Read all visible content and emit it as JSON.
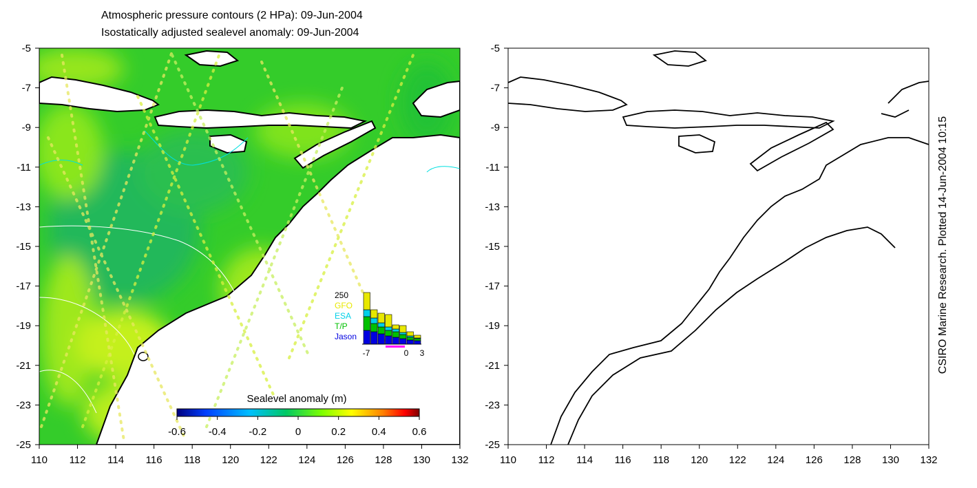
{
  "titles": {
    "line1": "Atmospheric pressure contours (2 HPa): 09-Jun-2004",
    "line2": "Isostatically adjusted sealevel anomaly: 09-Jun-2004"
  },
  "credit": "CSIRO Marine Research. Plotted 14-Jun-2004 10:15",
  "axes": {
    "x_ticks": [
      "110",
      "112",
      "114",
      "116",
      "118",
      "120",
      "122",
      "124",
      "126",
      "128",
      "130",
      "132"
    ],
    "y_ticks": [
      "-5",
      "-7",
      "-9",
      "-11",
      "-13",
      "-15",
      "-17",
      "-19",
      "-21",
      "-23",
      "-25"
    ],
    "lon_range": [
      110,
      132
    ],
    "lat_range": [
      -25,
      -5
    ]
  },
  "colorbar": {
    "title": "Sealevel anomaly (m)",
    "ticks": [
      "-0.6",
      "-0.4",
      "-0.2",
      "0",
      "0.2",
      "0.4",
      "0.6"
    ],
    "range": [
      -0.6,
      0.6
    ],
    "colors": [
      "#00007f",
      "#0040ff",
      "#00bfff",
      "#00c864",
      "#7fff00",
      "#ffff00",
      "#ff8000",
      "#ff0000",
      "#7f0000"
    ]
  },
  "inset": {
    "ymax_label": "250",
    "x_labels": [
      "-7",
      "0",
      "3"
    ],
    "legend": [
      {
        "name": "GFO",
        "color": "#e8e800"
      },
      {
        "name": "ESA",
        "color": "#00d0e8"
      },
      {
        "name": "T/P",
        "color": "#00c000"
      },
      {
        "name": "Jason",
        "color": "#0000e0"
      }
    ]
  },
  "colors": {
    "land": "#ffffff",
    "coast": "#000000",
    "pressure_contour": "#ffffff",
    "cyan_contour": "#00e0e0"
  }
}
